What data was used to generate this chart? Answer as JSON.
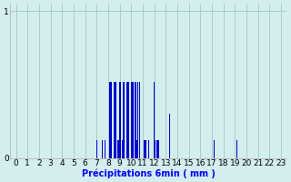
{
  "xlabel": "Précipitations 6min ( mm )",
  "xlim": [
    -0.5,
    23.5
  ],
  "ylim": [
    0,
    1.05
  ],
  "yticks": [
    0,
    1
  ],
  "xticks": [
    0,
    1,
    2,
    3,
    4,
    5,
    6,
    7,
    8,
    9,
    10,
    11,
    12,
    13,
    14,
    15,
    16,
    17,
    18,
    19,
    20,
    21,
    22,
    23
  ],
  "background_color": "#d4eeee",
  "bar_color": "#0000cc",
  "grid_color": "#aacccc",
  "bar_width": 0.07,
  "bars": [
    [
      7.0,
      0.12
    ],
    [
      7.5,
      0.12
    ],
    [
      7.7,
      0.12
    ],
    [
      8.0,
      0.12
    ],
    [
      8.1,
      0.52
    ],
    [
      8.2,
      0.52
    ],
    [
      8.3,
      0.52
    ],
    [
      8.4,
      0.52
    ],
    [
      8.5,
      0.52
    ],
    [
      8.6,
      0.52
    ],
    [
      8.7,
      0.52
    ],
    [
      8.8,
      0.12
    ],
    [
      8.9,
      0.12
    ],
    [
      9.0,
      0.52
    ],
    [
      9.1,
      0.52
    ],
    [
      9.2,
      0.12
    ],
    [
      9.3,
      0.52
    ],
    [
      9.4,
      0.52
    ],
    [
      9.5,
      0.52
    ],
    [
      9.6,
      0.52
    ],
    [
      9.7,
      0.52
    ],
    [
      9.8,
      0.52
    ],
    [
      9.9,
      0.52
    ],
    [
      10.0,
      0.52
    ],
    [
      10.1,
      0.52
    ],
    [
      10.2,
      0.52
    ],
    [
      10.3,
      0.52
    ],
    [
      10.4,
      0.52
    ],
    [
      10.5,
      0.12
    ],
    [
      10.6,
      0.52
    ],
    [
      10.7,
      0.52
    ],
    [
      11.0,
      0.12
    ],
    [
      11.1,
      0.12
    ],
    [
      11.2,
      0.12
    ],
    [
      11.3,
      0.12
    ],
    [
      11.4,
      0.52
    ],
    [
      11.5,
      0.12
    ],
    [
      12.0,
      0.52
    ],
    [
      12.1,
      0.12
    ],
    [
      12.2,
      0.12
    ],
    [
      12.3,
      0.12
    ],
    [
      12.4,
      0.12
    ],
    [
      12.5,
      0.12
    ],
    [
      13.3,
      0.3
    ],
    [
      17.2,
      0.12
    ],
    [
      17.4,
      0.12
    ],
    [
      19.2,
      0.12
    ]
  ]
}
